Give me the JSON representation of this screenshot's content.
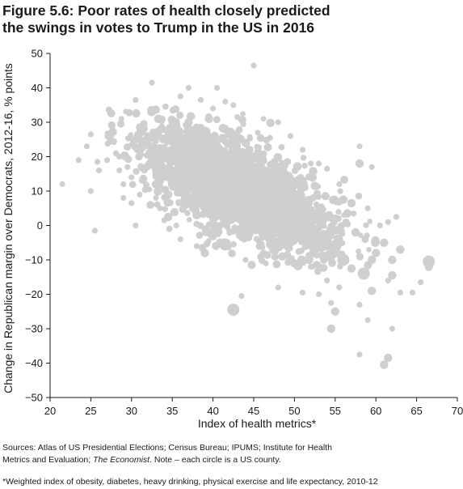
{
  "title": {
    "line1": "Figure 5.6: Poor rates of health closely predicted",
    "line2": "the swings in votes to Trump in the US in 2016"
  },
  "footer": {
    "sources_prefix": "Sources: Atlas of US Presidential Elections; Census Bureau; IPUMS; Institute for Health",
    "sources_line2_start": "Metrics and Evaluation; ",
    "sources_italic": "The Economist",
    "sources_line2_end": ". Note – each circle is a US county.",
    "footnote": "*Weighted index of obesity, diabetes, heavy drinking, physical exercise and life expectancy, 2010-12"
  },
  "colors": {
    "point": "#cfcfcf",
    "axis": "#1a1a1a"
  },
  "chart_data": {
    "type": "scatter",
    "xlabel": "Index of health metrics*",
    "ylabel": "Change in Republican margin over Democrats, 2012-16, % points",
    "xlim": [
      20,
      70
    ],
    "ylim": [
      -50,
      50
    ],
    "x_ticks": [
      "20",
      "25",
      "30",
      "35",
      "40",
      "45",
      "50",
      "55",
      "60",
      "65",
      "70"
    ],
    "y_ticks": [
      "50",
      "40",
      "30",
      "20",
      "10",
      "0",
      "−10",
      "−20",
      "−30",
      "−40",
      "−50"
    ],
    "grid": false,
    "points": [
      {
        "x": 21.5,
        "y": 12.0,
        "r": 1
      },
      {
        "x": 24.5,
        "y": 23.0,
        "r": 1
      },
      {
        "x": 25.0,
        "y": 26.5,
        "r": 1
      },
      {
        "x": 25.0,
        "y": 10.0,
        "r": 1
      },
      {
        "x": 25.8,
        "y": 18.5,
        "r": 1
      },
      {
        "x": 25.5,
        "y": -1.5,
        "r": 1
      },
      {
        "x": 27.5,
        "y": 29.0,
        "r": 1
      },
      {
        "x": 27.5,
        "y": 26.0,
        "r": 1
      },
      {
        "x": 28.5,
        "y": 20.0,
        "r": 1
      },
      {
        "x": 29.0,
        "y": 8.0,
        "r": 1
      },
      {
        "x": 29.5,
        "y": 17.0,
        "r": 1
      },
      {
        "x": 30.0,
        "y": 6.5,
        "r": 1
      },
      {
        "x": 30.5,
        "y": 36.5,
        "r": 1
      },
      {
        "x": 30.5,
        "y": 0.0,
        "r": 1
      },
      {
        "x": 31.0,
        "y": 28.0,
        "r": 1
      },
      {
        "x": 31.5,
        "y": 13.0,
        "r": 1
      },
      {
        "x": 32.5,
        "y": 41.5,
        "r": 1
      },
      {
        "x": 33.0,
        "y": 24.5,
        "r": 1
      },
      {
        "x": 33.5,
        "y": 5.0,
        "r": 1
      },
      {
        "x": 34.0,
        "y": 1.5,
        "r": 1
      },
      {
        "x": 34.5,
        "y": 2.5,
        "r": 2
      },
      {
        "x": 36.0,
        "y": 37.5,
        "r": 1
      },
      {
        "x": 37.0,
        "y": 40.0,
        "r": 1
      },
      {
        "x": 38.5,
        "y": 36.5,
        "r": 1
      },
      {
        "x": 40.0,
        "y": 34.0,
        "r": 1
      },
      {
        "x": 40.5,
        "y": 40.0,
        "r": 1
      },
      {
        "x": 41.5,
        "y": 36.0,
        "r": 1
      },
      {
        "x": 42.5,
        "y": 35.0,
        "r": 1
      },
      {
        "x": 43.0,
        "y": 31.5,
        "r": 1
      },
      {
        "x": 45.0,
        "y": 46.5,
        "r": 1
      },
      {
        "x": 45.5,
        "y": 27.0,
        "r": 1
      },
      {
        "x": 47.0,
        "y": 25.5,
        "r": 1
      },
      {
        "x": 48.0,
        "y": 30.0,
        "r": 1
      },
      {
        "x": 49.5,
        "y": 26.0,
        "r": 1
      },
      {
        "x": 51.0,
        "y": 22.0,
        "r": 1
      },
      {
        "x": 52.0,
        "y": 18.0,
        "r": 1
      },
      {
        "x": 53.0,
        "y": 18.0,
        "r": 1
      },
      {
        "x": 54.0,
        "y": 16.5,
        "r": 1
      },
      {
        "x": 55.5,
        "y": 12.0,
        "r": 1
      },
      {
        "x": 56.0,
        "y": 7.5,
        "r": 2
      },
      {
        "x": 57.0,
        "y": 6.5,
        "r": 2
      },
      {
        "x": 58.0,
        "y": 23.0,
        "r": 1
      },
      {
        "x": 58.0,
        "y": 18.0,
        "r": 2
      },
      {
        "x": 59.5,
        "y": 17.0,
        "r": 1
      },
      {
        "x": 59.0,
        "y": 5.0,
        "r": 1
      },
      {
        "x": 60.5,
        "y": 0.0,
        "r": 1
      },
      {
        "x": 61.5,
        "y": 1.0,
        "r": 1
      },
      {
        "x": 62.5,
        "y": 2.5,
        "r": 1
      },
      {
        "x": 60.0,
        "y": -8.0,
        "r": 2
      },
      {
        "x": 61.0,
        "y": -5.0,
        "r": 2
      },
      {
        "x": 62.0,
        "y": -10.0,
        "r": 2
      },
      {
        "x": 63.0,
        "y": -7.0,
        "r": 2
      },
      {
        "x": 62.0,
        "y": -14.5,
        "r": 2
      },
      {
        "x": 61.5,
        "y": -16.0,
        "r": 1
      },
      {
        "x": 63.0,
        "y": -19.5,
        "r": 1
      },
      {
        "x": 64.5,
        "y": -19.5,
        "r": 1
      },
      {
        "x": 65.5,
        "y": -16.5,
        "r": 1
      },
      {
        "x": 66.5,
        "y": -10.5,
        "r": 3
      },
      {
        "x": 66.5,
        "y": -12.0,
        "r": 2
      },
      {
        "x": 59.5,
        "y": -19.0,
        "r": 2
      },
      {
        "x": 59.0,
        "y": -27.5,
        "r": 1
      },
      {
        "x": 58.0,
        "y": -23.0,
        "r": 1
      },
      {
        "x": 62.0,
        "y": -30.0,
        "r": 1
      },
      {
        "x": 61.5,
        "y": -38.5,
        "r": 2
      },
      {
        "x": 61.0,
        "y": -40.5,
        "r": 2
      },
      {
        "x": 58.0,
        "y": -37.5,
        "r": 1
      },
      {
        "x": 55.0,
        "y": -25.0,
        "r": 2
      },
      {
        "x": 54.5,
        "y": -30.0,
        "r": 2
      },
      {
        "x": 54.5,
        "y": -22.5,
        "r": 1
      },
      {
        "x": 55.5,
        "y": -18.0,
        "r": 1
      },
      {
        "x": 54.0,
        "y": -16.0,
        "r": 1
      },
      {
        "x": 53.0,
        "y": -20.0,
        "r": 1
      },
      {
        "x": 51.0,
        "y": -19.5,
        "r": 1
      },
      {
        "x": 52.0,
        "y": -12.0,
        "r": 1
      },
      {
        "x": 42.5,
        "y": -24.5,
        "r": 3
      },
      {
        "x": 43.5,
        "y": -20.5,
        "r": 1
      },
      {
        "x": 48.0,
        "y": -18.0,
        "r": 1
      },
      {
        "x": 46.5,
        "y": -11.0,
        "r": 1
      },
      {
        "x": 44.0,
        "y": -10.0,
        "r": 1
      },
      {
        "x": 39.0,
        "y": -8.0,
        "r": 2
      },
      {
        "x": 41.5,
        "y": -5.5,
        "r": 3
      },
      {
        "x": 35.5,
        "y": 0.0,
        "r": 1
      },
      {
        "x": 36.0,
        "y": -4.0,
        "r": 1
      },
      {
        "x": 38.0,
        "y": -6.0,
        "r": 1
      },
      {
        "x": 57.0,
        "y": -12.5,
        "r": 2
      },
      {
        "x": 56.0,
        "y": -10.0,
        "r": 3
      },
      {
        "x": 58.5,
        "y": -14.0,
        "r": 3
      },
      {
        "x": 59.5,
        "y": -10.0,
        "r": 2
      },
      {
        "x": 57.5,
        "y": -2.0,
        "r": 2
      },
      {
        "x": 55.0,
        "y": -6.0,
        "r": 3
      },
      {
        "x": 53.5,
        "y": -3.0,
        "r": 2
      },
      {
        "x": 52.5,
        "y": -8.0,
        "r": 2
      },
      {
        "x": 50.0,
        "y": -11.0,
        "r": 2
      },
      {
        "x": 48.5,
        "y": -9.0,
        "r": 2
      },
      {
        "x": 47.0,
        "y": -5.5,
        "r": 2
      },
      {
        "x": 49.0,
        "y": 1.0,
        "r": 2
      },
      {
        "x": 51.5,
        "y": 0.5,
        "r": 3
      },
      {
        "x": 53.0,
        "y": 4.0,
        "r": 2
      },
      {
        "x": 55.0,
        "y": 2.0,
        "r": 2
      },
      {
        "x": 56.5,
        "y": 3.5,
        "r": 2
      },
      {
        "x": 50.5,
        "y": 7.5,
        "r": 2
      },
      {
        "x": 46.5,
        "y": 6.0,
        "r": 2
      },
      {
        "x": 44.5,
        "y": 3.0,
        "r": 2
      },
      {
        "x": 42.0,
        "y": 1.5,
        "r": 2
      },
      {
        "x": 40.0,
        "y": 0.5,
        "r": 2
      },
      {
        "x": 38.0,
        "y": 3.0,
        "r": 2
      },
      {
        "x": 36.5,
        "y": 6.0,
        "r": 2
      },
      {
        "x": 34.5,
        "y": 9.0,
        "r": 2
      },
      {
        "x": 33.0,
        "y": 12.0,
        "r": 2
      },
      {
        "x": 32.0,
        "y": 17.0,
        "r": 1
      },
      {
        "x": 33.5,
        "y": 21.0,
        "r": 2
      },
      {
        "x": 35.0,
        "y": 26.0,
        "r": 2
      },
      {
        "x": 37.0,
        "y": 30.0,
        "r": 2
      },
      {
        "x": 39.5,
        "y": 31.0,
        "r": 2
      },
      {
        "x": 41.5,
        "y": 28.0,
        "r": 2
      },
      {
        "x": 44.0,
        "y": 24.0,
        "r": 2
      },
      {
        "x": 46.0,
        "y": 20.0,
        "r": 2
      },
      {
        "x": 48.5,
        "y": 16.5,
        "r": 2
      },
      {
        "x": 50.5,
        "y": 13.0,
        "r": 2
      },
      {
        "x": 52.5,
        "y": 11.5,
        "r": 2
      },
      {
        "x": 47.0,
        "y": 13.5,
        "r": 3
      },
      {
        "x": 44.5,
        "y": 15.0,
        "r": 3
      },
      {
        "x": 42.0,
        "y": 17.0,
        "r": 3
      },
      {
        "x": 40.0,
        "y": 19.0,
        "r": 3
      },
      {
        "x": 38.0,
        "y": 21.0,
        "r": 3
      },
      {
        "x": 36.0,
        "y": 18.0,
        "r": 3
      },
      {
        "x": 37.5,
        "y": 14.0,
        "r": 3
      },
      {
        "x": 39.5,
        "y": 11.0,
        "r": 3
      },
      {
        "x": 41.5,
        "y": 9.0,
        "r": 3
      },
      {
        "x": 43.5,
        "y": 7.5,
        "r": 3
      },
      {
        "x": 45.5,
        "y": 9.5,
        "r": 3
      },
      {
        "x": 48.0,
        "y": 5.0,
        "r": 3
      },
      {
        "x": 50.0,
        "y": 3.0,
        "r": 3
      },
      {
        "x": 52.0,
        "y": -2.0,
        "r": 3
      },
      {
        "x": 54.0,
        "y": -5.0,
        "r": 2
      },
      {
        "x": 35.0,
        "y": 14.0,
        "r": 2
      },
      {
        "x": 34.0,
        "y": 16.0,
        "r": 2
      },
      {
        "x": 33.0,
        "y": 8.0,
        "r": 1
      },
      {
        "x": 31.0,
        "y": 9.0,
        "r": 1
      },
      {
        "x": 30.0,
        "y": 14.0,
        "r": 1
      },
      {
        "x": 29.0,
        "y": 12.0,
        "r": 1
      },
      {
        "x": 28.5,
        "y": 16.0,
        "r": 1
      },
      {
        "x": 27.0,
        "y": 19.0,
        "r": 1
      },
      {
        "x": 26.0,
        "y": 16.0,
        "r": 1
      },
      {
        "x": 23.5,
        "y": 19.0,
        "r": 1
      }
    ]
  }
}
